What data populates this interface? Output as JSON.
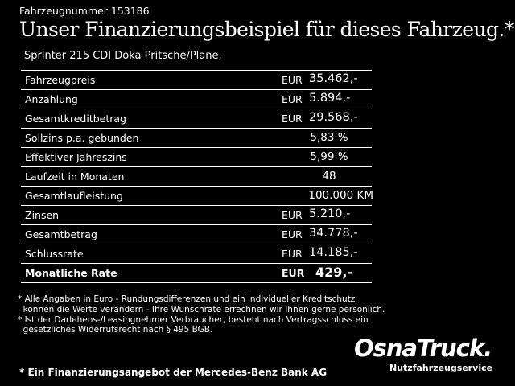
{
  "header": {
    "vehicle_number": "Fahrzeugnummer 153186",
    "headline": "Unser Finanzierungsbeispiel für dieses Fahrzeug.*",
    "model": "Sprinter 215 CDI Doka Pritsche/Plane,"
  },
  "table": {
    "rows": [
      {
        "label": "Fahrzeugpreis",
        "currency": "EUR",
        "value": "35.462,-"
      },
      {
        "label": "Anzahlung",
        "currency": "EUR",
        "value": "5.894,-"
      },
      {
        "label": "Gesamtkreditbetrag",
        "currency": "EUR",
        "value": "29.568,-"
      },
      {
        "label": "Sollzins p.a. gebunden",
        "currency": "",
        "value": "5,83 %"
      },
      {
        "label": "Effektiver Jahreszins",
        "currency": "",
        "value": "5,99 %"
      },
      {
        "label": "Laufzeit in Monaten",
        "currency": "",
        "value": "48"
      },
      {
        "label": "Gesamtlaufleistung",
        "currency": "",
        "value": "100.000 KM"
      },
      {
        "label": "Zinsen",
        "currency": "EUR",
        "value": "5.210,-"
      },
      {
        "label": "Gesamtbetrag",
        "currency": "EUR",
        "value": "34.778,-"
      },
      {
        "label": "Schlussrate",
        "currency": "EUR",
        "value": "14.185,-"
      },
      {
        "label": "Monatliche Rate",
        "currency": "EUR",
        "value": "429,-"
      }
    ]
  },
  "footnotes": {
    "line1": "* Alle Angaben in Euro - Rundungsdifferenzen und ein individueller Kreditschutz",
    "line2": "  können die Werte verändern - Ihre Wunschrate errechnen wir Ihnen gerne persönlich.",
    "line3": "* Ist der Darlehens-/Leasingnehmer Verbraucher, besteht nach Vertragsschluss ein",
    "line4": "  gesetzliches Widerrufsrecht nach § 495 BGB."
  },
  "bank_note": "* Ein Finanzierungsangebot der Mercedes-Benz Bank AG",
  "logo": {
    "word": "OsnaTruck.",
    "sub": "Nutzfahrzeugservice"
  }
}
